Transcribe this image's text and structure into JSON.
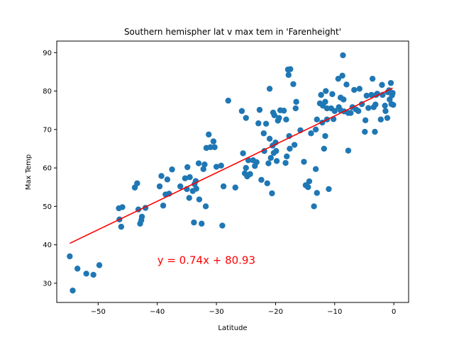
{
  "chart_data": {
    "type": "scatter",
    "title": "Southern hemispher lat v max tem in 'Farenheight'",
    "xlabel": "Latitude",
    "ylabel": "Max Temp",
    "xlim": [
      -57,
      2.5
    ],
    "ylim": [
      25,
      93
    ],
    "xticks": [
      -50,
      -40,
      -30,
      -20,
      -10,
      0
    ],
    "yticks": [
      30,
      40,
      50,
      60,
      70,
      80,
      90
    ],
    "grid": false,
    "point_color": "#1f77b4",
    "line_color": "#ff0000",
    "regression": {
      "slope": 0.74,
      "intercept": 80.93,
      "x_range": [
        -54.8,
        -0.2
      ]
    },
    "annotation": {
      "text": "y = 0.74x + 80.93",
      "x": -40,
      "y": 35,
      "color": "#ff0000"
    },
    "points": [
      [
        -54.8,
        37.0
      ],
      [
        -54.3,
        28.1
      ],
      [
        -53.5,
        33.8
      ],
      [
        -52.0,
        32.5
      ],
      [
        -50.8,
        32.2
      ],
      [
        -49.8,
        34.7
      ],
      [
        -46.5,
        49.5
      ],
      [
        -46.4,
        46.6
      ],
      [
        -46.1,
        44.7
      ],
      [
        -45.9,
        49.8
      ],
      [
        -43.8,
        54.9
      ],
      [
        -43.4,
        56.0
      ],
      [
        -43.2,
        49.2
      ],
      [
        -42.9,
        45.5
      ],
      [
        -42.7,
        46.4
      ],
      [
        -42.6,
        47.3
      ],
      [
        -42.0,
        49.6
      ],
      [
        -39.6,
        55.2
      ],
      [
        -39.3,
        57.9
      ],
      [
        -39.0,
        50.2
      ],
      [
        -38.6,
        53.1
      ],
      [
        -38.3,
        57.0
      ],
      [
        -38.0,
        53.3
      ],
      [
        -37.5,
        59.6
      ],
      [
        -36.1,
        55.2
      ],
      [
        -35.3,
        57.3
      ],
      [
        -35.0,
        54.5
      ],
      [
        -34.9,
        60.2
      ],
      [
        -34.6,
        52.2
      ],
      [
        -34.5,
        57.6
      ],
      [
        -34.0,
        54.0
      ],
      [
        -33.8,
        45.8
      ],
      [
        -33.7,
        55.8
      ],
      [
        -33.5,
        56.6
      ],
      [
        -33.4,
        54.6
      ],
      [
        -33.0,
        61.2
      ],
      [
        -32.9,
        51.8
      ],
      [
        -32.5,
        45.5
      ],
      [
        -32.2,
        59.7
      ],
      [
        -32.0,
        60.9
      ],
      [
        -31.8,
        50.0
      ],
      [
        -31.7,
        65.2
      ],
      [
        -31.3,
        68.7
      ],
      [
        -31.0,
        65.4
      ],
      [
        -30.5,
        66.9
      ],
      [
        -30.3,
        65.4
      ],
      [
        -30.0,
        60.3
      ],
      [
        -29.2,
        60.6
      ],
      [
        -29.0,
        45.0
      ],
      [
        -28.8,
        55.2
      ],
      [
        -28.0,
        77.5
      ],
      [
        -26.8,
        54.9
      ],
      [
        -25.7,
        74.8
      ],
      [
        -25.5,
        63.8
      ],
      [
        -25.2,
        58.6
      ],
      [
        -25.0,
        60.0
      ],
      [
        -25.0,
        73.0
      ],
      [
        -24.8,
        57.8
      ],
      [
        -24.6,
        62.0
      ],
      [
        -24.3,
        58.4
      ],
      [
        -23.8,
        62.0
      ],
      [
        -23.5,
        60.5
      ],
      [
        -23.2,
        61.5
      ],
      [
        -22.9,
        71.6
      ],
      [
        -22.7,
        75.1
      ],
      [
        -22.4,
        56.9
      ],
      [
        -22.0,
        69.0
      ],
      [
        -21.9,
        64.4
      ],
      [
        -21.6,
        71.5
      ],
      [
        -21.4,
        56.0
      ],
      [
        -21.2,
        61.2
      ],
      [
        -21.0,
        80.6
      ],
      [
        -21.0,
        67.6
      ],
      [
        -20.8,
        62.6
      ],
      [
        -20.6,
        53.4
      ],
      [
        -20.5,
        65.8
      ],
      [
        -20.4,
        74.4
      ],
      [
        -20.3,
        63.9
      ],
      [
        -20.2,
        73.7
      ],
      [
        -20.0,
        66.6
      ],
      [
        -19.9,
        64.4
      ],
      [
        -19.8,
        61.8
      ],
      [
        -19.6,
        72.3
      ],
      [
        -19.4,
        73.0
      ],
      [
        -19.2,
        75.0
      ],
      [
        -18.6,
        74.9
      ],
      [
        -18.3,
        61.3
      ],
      [
        -18.2,
        72.6
      ],
      [
        -18.1,
        63.0
      ],
      [
        -17.9,
        85.6
      ],
      [
        -17.8,
        84.2
      ],
      [
        -17.7,
        68.3
      ],
      [
        -17.6,
        65.0
      ],
      [
        -17.5,
        85.7
      ],
      [
        -17.0,
        81.8
      ],
      [
        -16.8,
        66.0
      ],
      [
        -16.6,
        75.5
      ],
      [
        -16.5,
        77.2
      ],
      [
        -15.8,
        69.8
      ],
      [
        -15.2,
        61.6
      ],
      [
        -14.9,
        55.5
      ],
      [
        -14.5,
        55.0
      ],
      [
        -14.3,
        56.5
      ],
      [
        -14.0,
        69.0
      ],
      [
        -13.5,
        50.0
      ],
      [
        -13.2,
        59.7
      ],
      [
        -13.2,
        70.0
      ],
      [
        -13.0,
        53.5
      ],
      [
        -13.0,
        72.6
      ],
      [
        -12.5,
        76.8
      ],
      [
        -12.3,
        79.0
      ],
      [
        -12.1,
        71.8
      ],
      [
        -12.0,
        76.2
      ],
      [
        -11.8,
        65.0
      ],
      [
        -11.6,
        68.3
      ],
      [
        -11.6,
        77.2
      ],
      [
        -11.5,
        80.0
      ],
      [
        -11.3,
        72.6
      ],
      [
        -11.3,
        75.5
      ],
      [
        -11.0,
        54.5
      ],
      [
        -10.6,
        75.5
      ],
      [
        -10.4,
        79.2
      ],
      [
        -10.2,
        72.7
      ],
      [
        -10.0,
        74.8
      ],
      [
        -9.4,
        83.2
      ],
      [
        -9.3,
        75.8
      ],
      [
        -9.0,
        75.0
      ],
      [
        -9.0,
        78.3
      ],
      [
        -8.7,
        84.0
      ],
      [
        -8.6,
        89.3
      ],
      [
        -8.5,
        77.8
      ],
      [
        -8.4,
        74.7
      ],
      [
        -8.0,
        81.7
      ],
      [
        -7.7,
        64.5
      ],
      [
        -7.7,
        74.3
      ],
      [
        -7.3,
        74.3
      ],
      [
        -7.0,
        75.8
      ],
      [
        -6.7,
        80.3
      ],
      [
        -6.4,
        75.2
      ],
      [
        -6.0,
        74.8
      ],
      [
        -5.8,
        80.6
      ],
      [
        -5.4,
        76.6
      ],
      [
        -4.9,
        69.4
      ],
      [
        -4.8,
        72.4
      ],
      [
        -4.6,
        78.8
      ],
      [
        -4.3,
        75.6
      ],
      [
        -3.8,
        79.0
      ],
      [
        -3.6,
        83.2
      ],
      [
        -3.4,
        75.8
      ],
      [
        -3.2,
        69.4
      ],
      [
        -3.1,
        76.5
      ],
      [
        -3.0,
        79.0
      ],
      [
        -2.8,
        79.3
      ],
      [
        -2.2,
        72.6
      ],
      [
        -2.0,
        81.6
      ],
      [
        -1.9,
        79.0
      ],
      [
        -1.5,
        76.2
      ],
      [
        -1.4,
        74.8
      ],
      [
        -1.1,
        73.0
      ],
      [
        -1.0,
        79.7
      ],
      [
        -0.8,
        80.2
      ],
      [
        -0.7,
        77.8
      ],
      [
        -0.5,
        82.1
      ],
      [
        -0.4,
        76.6
      ],
      [
        -0.3,
        78.9
      ],
      [
        -0.2,
        79.5
      ],
      [
        -0.1,
        76.4
      ]
    ]
  }
}
